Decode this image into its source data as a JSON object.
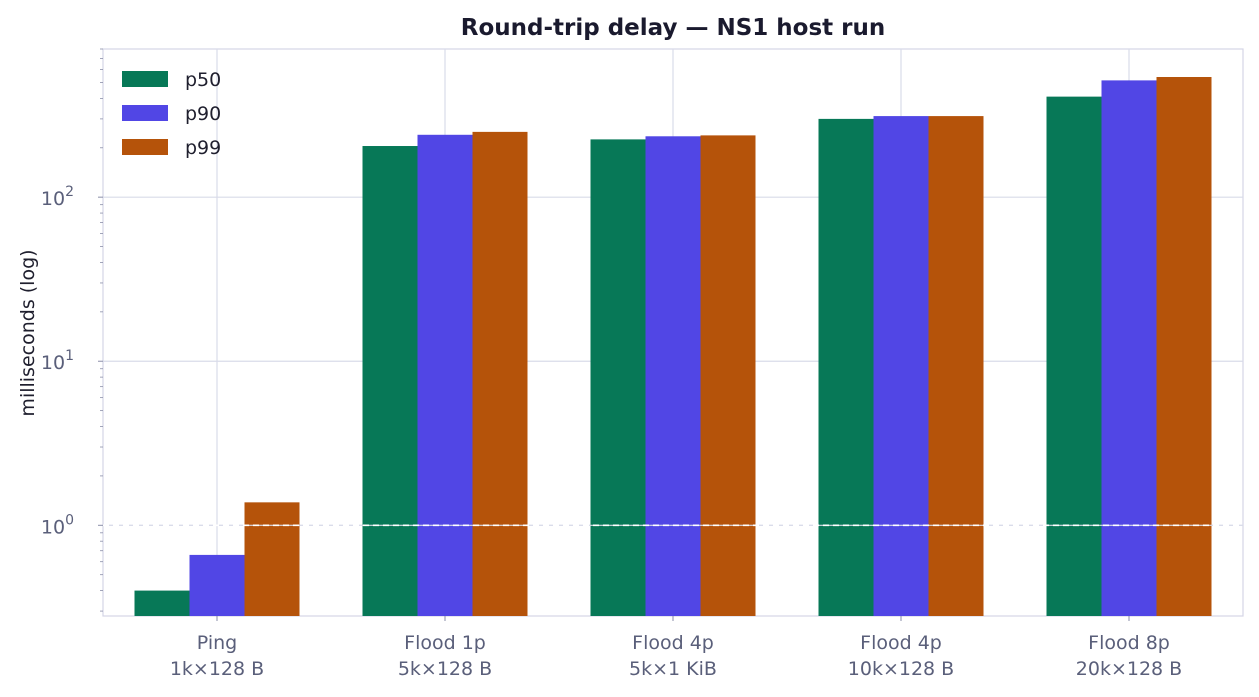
{
  "chart_data": {
    "type": "bar",
    "title": "Round-trip delay — NS1 host run",
    "xlabel": "",
    "ylabel": "milliseconds (log)",
    "yscale": "log",
    "ylim": [
      0.28,
      800
    ],
    "yticks": [
      {
        "value": 1,
        "base": "10",
        "exp": "0"
      },
      {
        "value": 10,
        "base": "10",
        "exp": "1"
      },
      {
        "value": 100,
        "base": "10",
        "exp": "2"
      }
    ],
    "categories": [
      [
        "Ping",
        "1k×128 B"
      ],
      [
        "Flood 1p",
        "5k×128 B"
      ],
      [
        "Flood 4p",
        "5k×1 KiB"
      ],
      [
        "Flood 4p",
        "10k×128 B"
      ],
      [
        "Flood 8p",
        "20k×128 B"
      ]
    ],
    "series": [
      {
        "name": "p50",
        "color": "#077857",
        "values": [
          0.4,
          205,
          225,
          300,
          410
        ]
      },
      {
        "name": "p90",
        "color": "#5146e5",
        "values": [
          0.66,
          240,
          235,
          312,
          515
        ]
      },
      {
        "name": "p99",
        "color": "#b5530a",
        "values": [
          1.38,
          250,
          238,
          312,
          540
        ]
      }
    ],
    "reference_line": {
      "value": 1,
      "style": "dashed",
      "color": "#ffffff"
    },
    "grid": true,
    "legend": "top-left"
  }
}
